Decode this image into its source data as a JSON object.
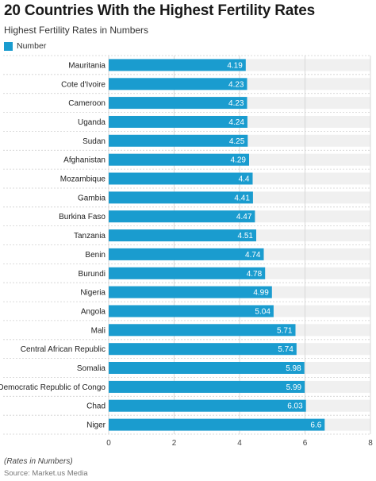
{
  "header": {
    "title": "20 Countries With the Highest Fertility Rates",
    "subtitle": "Highest Fertility Rates in Numbers"
  },
  "legend": {
    "label": "Number",
    "color": "#1a9ccf"
  },
  "footer": {
    "axis_note": "(Rates in Numbers)",
    "source": "Source: Market.us Media"
  },
  "chart_data": {
    "type": "bar",
    "orientation": "horizontal",
    "categories": [
      "Mauritania",
      "Cote d'Ivoire",
      "Cameroon",
      "Uganda",
      "Sudan",
      "Afghanistan",
      "Mozambique",
      "Gambia",
      "Burkina Faso",
      "Tanzania",
      "Benin",
      "Burundi",
      "Nigeria",
      "Angola",
      "Mali",
      "Central African Republic",
      "Somalia",
      "Democratic Republic of Congo",
      "Chad",
      "Niger"
    ],
    "series": [
      {
        "name": "Number",
        "values": [
          4.19,
          4.23,
          4.23,
          4.24,
          4.25,
          4.29,
          4.4,
          4.41,
          4.47,
          4.51,
          4.74,
          4.78,
          4.99,
          5.04,
          5.71,
          5.74,
          5.98,
          5.99,
          6.03,
          6.6
        ],
        "labels": [
          "4.19",
          "4.23",
          "4.23",
          "4.24",
          "4.25",
          "4.29",
          "4.4",
          "4.41",
          "4.47",
          "4.51",
          "4.74",
          "4.78",
          "4.99",
          "5.04",
          "5.71",
          "5.74",
          "5.98",
          "5.99",
          "6.03",
          "6.6"
        ]
      }
    ],
    "xlim": [
      0,
      8
    ],
    "xticks": [
      0,
      2,
      4,
      6,
      8
    ],
    "xtick_labels": [
      "0",
      "2",
      "4",
      "6",
      "8"
    ],
    "grid": true,
    "legend_position": "top-left",
    "colors": {
      "bar": "#1a9ccf",
      "band": "#f0f0f0",
      "grid": "#d8d8d8",
      "bar_label": "#ffffff"
    }
  }
}
